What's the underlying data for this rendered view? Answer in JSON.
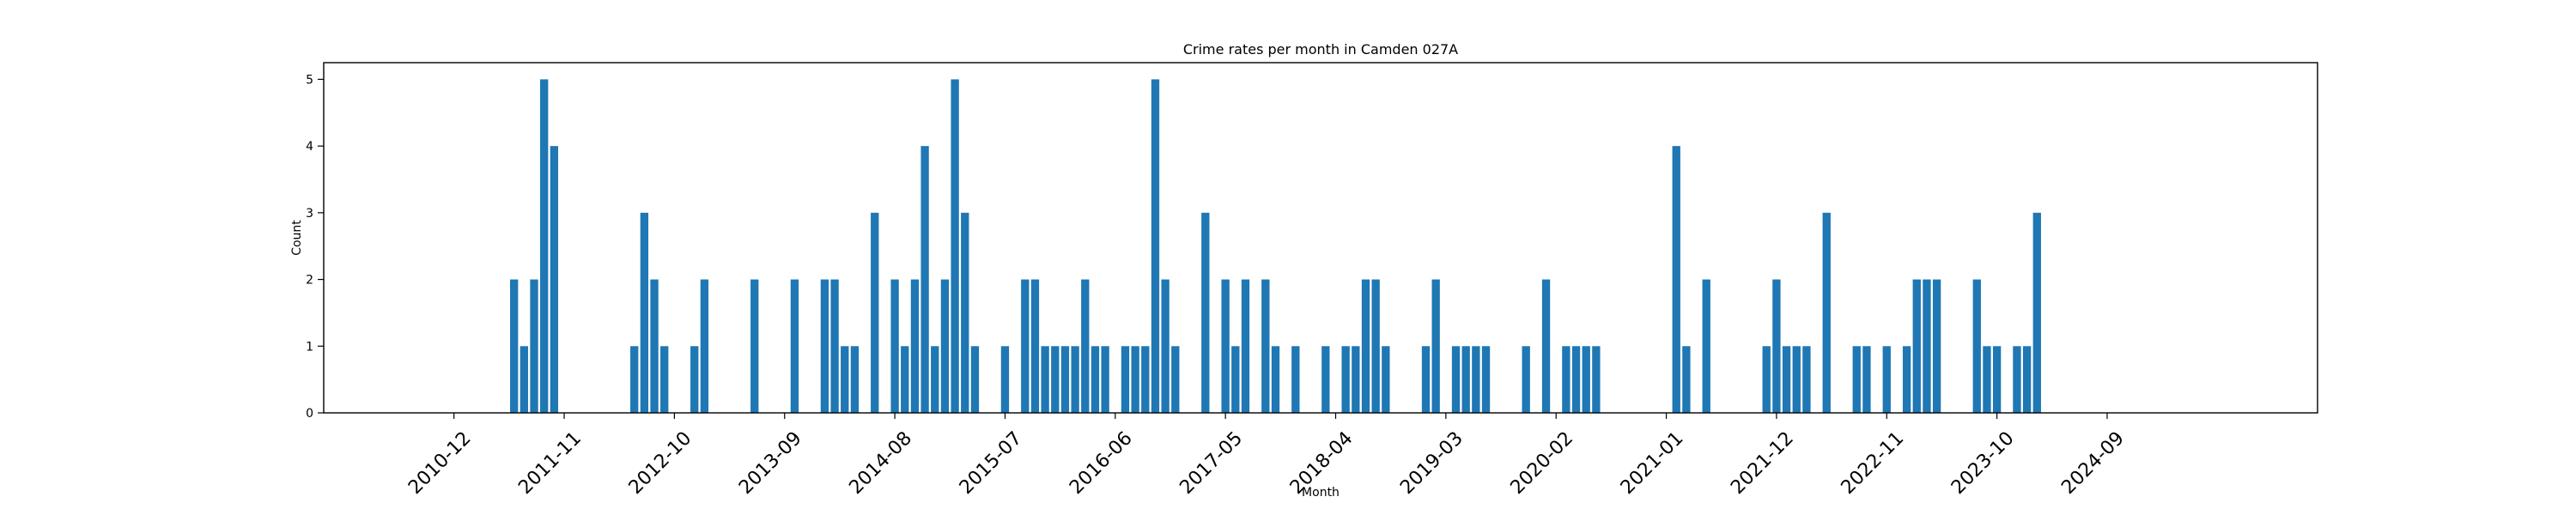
{
  "chart_data": {
    "type": "bar",
    "title": "Crime rates per month in Camden 027A",
    "xlabel": "Month",
    "ylabel": "Count",
    "ylim": [
      0,
      5.25
    ],
    "yticks": [
      0,
      1,
      2,
      3,
      4,
      5
    ],
    "xlim": [
      "2009-11",
      "2026-06"
    ],
    "xticks": [
      "2010-12",
      "2011-11",
      "2012-10",
      "2013-09",
      "2014-08",
      "2015-07",
      "2016-06",
      "2017-05",
      "2018-04",
      "2019-03",
      "2020-02",
      "2021-01",
      "2021-12",
      "2022-11",
      "2023-10",
      "2024-09"
    ],
    "color": "#1f77b4",
    "grid": false,
    "x": [
      "2011-06",
      "2011-07",
      "2011-08",
      "2011-09",
      "2011-10",
      "2012-06",
      "2012-07",
      "2012-08",
      "2012-09",
      "2012-12",
      "2013-01",
      "2013-06",
      "2013-10",
      "2014-01",
      "2014-02",
      "2014-03",
      "2014-04",
      "2014-06",
      "2014-08",
      "2014-09",
      "2014-10",
      "2014-11",
      "2014-12",
      "2015-01",
      "2015-02",
      "2015-03",
      "2015-04",
      "2015-07",
      "2015-09",
      "2015-10",
      "2015-11",
      "2015-12",
      "2016-01",
      "2016-02",
      "2016-03",
      "2016-04",
      "2016-05",
      "2016-07",
      "2016-08",
      "2016-09",
      "2016-10",
      "2016-11",
      "2016-12",
      "2017-03",
      "2017-05",
      "2017-06",
      "2017-07",
      "2017-09",
      "2017-10",
      "2017-12",
      "2018-03",
      "2018-05",
      "2018-06",
      "2018-07",
      "2018-08",
      "2018-09",
      "2019-01",
      "2019-02",
      "2019-04",
      "2019-05",
      "2019-06",
      "2019-07",
      "2019-11",
      "2020-01",
      "2020-03",
      "2020-04",
      "2020-05",
      "2020-06",
      "2021-02",
      "2021-03",
      "2021-05",
      "2021-11",
      "2021-12",
      "2022-01",
      "2022-02",
      "2022-03",
      "2022-05",
      "2022-08",
      "2022-09",
      "2022-11",
      "2023-01",
      "2023-02",
      "2023-03",
      "2023-04",
      "2023-08",
      "2023-09",
      "2023-10",
      "2023-12",
      "2024-01",
      "2024-02"
    ],
    "values": [
      2,
      1,
      2,
      5,
      4,
      1,
      3,
      2,
      1,
      1,
      2,
      2,
      2,
      2,
      2,
      1,
      1,
      3,
      2,
      1,
      2,
      4,
      1,
      2,
      5,
      3,
      1,
      1,
      2,
      2,
      1,
      1,
      1,
      1,
      2,
      1,
      1,
      1,
      1,
      1,
      5,
      2,
      1,
      3,
      2,
      1,
      2,
      2,
      1,
      1,
      1,
      1,
      1,
      2,
      2,
      1,
      1,
      2,
      1,
      1,
      1,
      1,
      1,
      2,
      1,
      1,
      1,
      1,
      4,
      1,
      2,
      1,
      2,
      1,
      1,
      1,
      3,
      1,
      1,
      1,
      1,
      2,
      2,
      2,
      2,
      1,
      1,
      1,
      1,
      3
    ]
  }
}
